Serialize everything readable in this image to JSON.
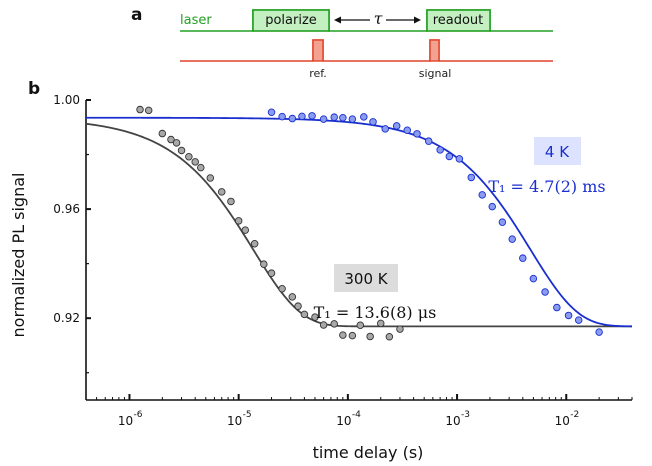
{
  "panels": {
    "a": "a",
    "b": "b"
  },
  "sequence": {
    "laser_label": "laser",
    "polarize_label": "polarize",
    "tau_label": "τ",
    "readout_label": "readout",
    "ref_label": "ref.",
    "signal_label": "signal",
    "laser_color": "#22a022",
    "counter_color": "#e0442a",
    "pulse_fill_green": "#c4efc0",
    "pulse_fill_red": "#f3a291"
  },
  "chart_data": {
    "type": "scatter",
    "xlabel": "time delay (s)",
    "ylabel": "normalized PL signal",
    "xscale": "log",
    "xlim": [
      4e-07,
      0.04
    ],
    "ylim": [
      0.89,
      1.0
    ],
    "x_ticks": [
      {
        "value": 1e-06,
        "base": "10",
        "exp": "-6"
      },
      {
        "value": 1e-05,
        "base": "10",
        "exp": "-5"
      },
      {
        "value": 0.0001,
        "base": "10",
        "exp": "-4"
      },
      {
        "value": 0.001,
        "base": "10",
        "exp": "-3"
      },
      {
        "value": 0.01,
        "base": "10",
        "exp": "-2"
      }
    ],
    "y_ticks": [
      {
        "value": 1.0,
        "label": "1.00"
      },
      {
        "value": 0.96,
        "label": "0.96"
      },
      {
        "value": 0.92,
        "label": "0.92"
      }
    ],
    "series": [
      {
        "name": "300 K",
        "color": "#444444",
        "marker_fill": "#a8a8a8",
        "annotation": "T₁ = 13.6(8) μs",
        "fit": {
          "T1": 1.36e-05,
          "y_high": 0.9935,
          "y_low": 0.917
        },
        "points": [
          [
            1.25e-06,
            0.9965
          ],
          [
            1.5e-06,
            0.9962
          ],
          [
            2e-06,
            0.9877
          ],
          [
            2.4e-06,
            0.9855
          ],
          [
            2.7e-06,
            0.9843
          ],
          [
            3e-06,
            0.9815
          ],
          [
            3.5e-06,
            0.9792
          ],
          [
            4e-06,
            0.9773
          ],
          [
            4.5e-06,
            0.9752
          ],
          [
            5.5e-06,
            0.9714
          ],
          [
            7e-06,
            0.9663
          ],
          [
            8.5e-06,
            0.9628
          ],
          [
            1e-05,
            0.9557
          ],
          [
            1.15e-05,
            0.9523
          ],
          [
            1.4e-05,
            0.9473
          ],
          [
            1.7e-05,
            0.9398
          ],
          [
            2e-05,
            0.9365
          ],
          [
            2.5e-05,
            0.9308
          ],
          [
            3.1e-05,
            0.9278
          ],
          [
            3.5e-05,
            0.9244
          ],
          [
            4e-05,
            0.9214
          ],
          [
            5e-05,
            0.9204
          ],
          [
            6e-05,
            0.9175
          ],
          [
            7.5e-05,
            0.9179
          ],
          [
            9e-05,
            0.9138
          ],
          [
            0.00011,
            0.9136
          ],
          [
            0.00013,
            0.9174
          ],
          [
            0.00016,
            0.9133
          ],
          [
            0.0002,
            0.9181
          ],
          [
            0.00024,
            0.9132
          ],
          [
            0.0003,
            0.916
          ]
        ]
      },
      {
        "name": "4 K",
        "color": "#1a2fcf",
        "marker_fill": "#8a9cf0",
        "annotation": "T₁ = 4.7(2) ms",
        "fit": {
          "T1": 0.0047,
          "y_high": 0.9935,
          "y_low": 0.917
        },
        "points": [
          [
            2e-05,
            0.9955
          ],
          [
            2.5e-05,
            0.9939
          ],
          [
            3.1e-05,
            0.9932
          ],
          [
            3.8e-05,
            0.994
          ],
          [
            4.7e-05,
            0.9942
          ],
          [
            6e-05,
            0.993
          ],
          [
            7.5e-05,
            0.9937
          ],
          [
            9e-05,
            0.9935
          ],
          [
            0.00011,
            0.993
          ],
          [
            0.00014,
            0.9938
          ],
          [
            0.00017,
            0.992
          ],
          [
            0.00022,
            0.9894
          ],
          [
            0.00028,
            0.9905
          ],
          [
            0.00035,
            0.9889
          ],
          [
            0.00043,
            0.9876
          ],
          [
            0.00055,
            0.9849
          ],
          [
            0.0007,
            0.9817
          ],
          [
            0.00085,
            0.9793
          ],
          [
            0.00105,
            0.9784
          ],
          [
            0.00135,
            0.9716
          ],
          [
            0.0017,
            0.9652
          ],
          [
            0.0021,
            0.9609
          ],
          [
            0.0026,
            0.9552
          ],
          [
            0.0032,
            0.949
          ],
          [
            0.004,
            0.942
          ],
          [
            0.005,
            0.9345
          ],
          [
            0.0064,
            0.9296
          ],
          [
            0.0082,
            0.9239
          ],
          [
            0.0105,
            0.921
          ],
          [
            0.013,
            0.9193
          ],
          [
            0.02,
            0.9149
          ]
        ]
      }
    ],
    "badges": [
      {
        "label": "4 K",
        "fill": "#dde3ff",
        "color": "#1a2fcf"
      },
      {
        "label": "300 K",
        "fill": "#dcdcdc",
        "color": "#111111"
      }
    ]
  }
}
